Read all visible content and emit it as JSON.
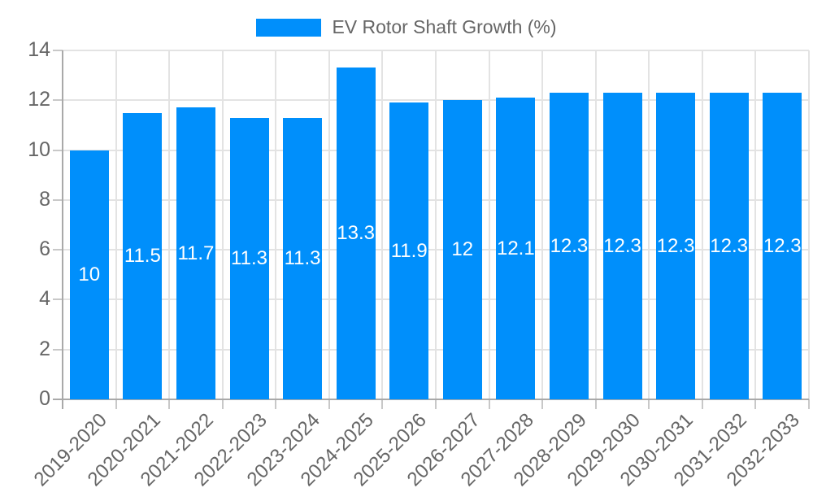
{
  "legend": {
    "label": "EV Rotor Shaft Growth (%)",
    "swatch_color": "#008FFB"
  },
  "chart_data": {
    "type": "bar",
    "title": "",
    "series_name": "EV Rotor Shaft Growth (%)",
    "categories": [
      "2019-2020",
      "2020-2021",
      "2021-2022",
      "2022-2023",
      "2023-2024",
      "2024-2025",
      "2025-2026",
      "2026-2027",
      "2027-2028",
      "2028-2029",
      "2029-2030",
      "2030-2031",
      "2031-2032",
      "2032-2033"
    ],
    "values": [
      10,
      11.5,
      11.7,
      11.3,
      11.3,
      13.3,
      11.9,
      12,
      12.1,
      12.3,
      12.3,
      12.3,
      12.3,
      12.3
    ],
    "value_labels": [
      "10",
      "11.5",
      "11.7",
      "11.3",
      "11.3",
      "13.3",
      "11.9",
      "12",
      "12.1",
      "12.3",
      "12.3",
      "12.3",
      "12.3",
      "12.3"
    ],
    "xlabel": "",
    "ylabel": "",
    "ylim": [
      0,
      14
    ],
    "yticks": [
      0,
      2,
      4,
      6,
      8,
      10,
      12,
      14
    ],
    "grid": true,
    "legend_position": "top",
    "bar_color": "#008FFB",
    "value_label_color": "#ffffff",
    "axis_text_color": "#666666",
    "gridline_color": "#e3e3e3",
    "tick_color": "#c8c8c8",
    "axis_line_color": "#a9a9a9"
  }
}
